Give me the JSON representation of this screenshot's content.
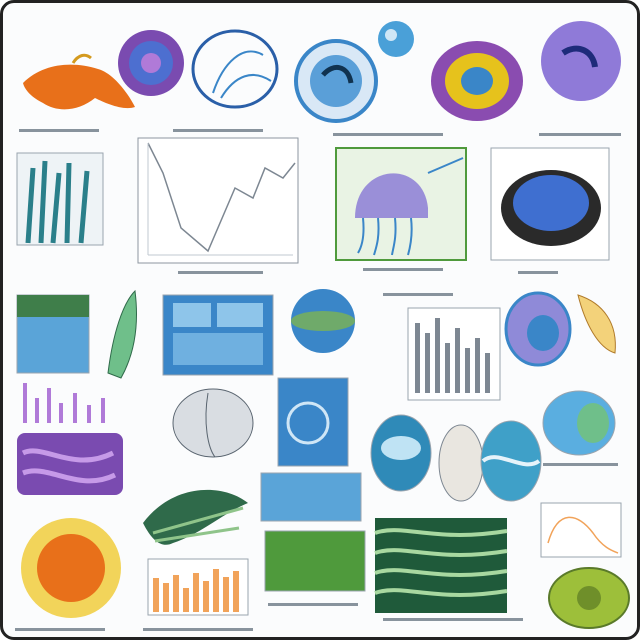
{
  "header_caption": "",
  "palette": {
    "orange": "#e8701a",
    "purple": "#7a4bb0",
    "blue": "#3a86c8",
    "teal": "#2a7f8a",
    "green": "#4f9a3c",
    "yellow": "#e6c21c",
    "lavender": "#9a8fd8",
    "gray": "#7d8792"
  },
  "panels": [
    {
      "name": "orange-specimen",
      "icon": "orange-creature-icon"
    },
    {
      "name": "purple-cell",
      "icon": "purple-cell-icon"
    },
    {
      "name": "blue-ring",
      "icon": "blue-ring-icon"
    },
    {
      "name": "blue-sphere",
      "icon": "blue-sphere-icon"
    },
    {
      "name": "yellow-urchin",
      "icon": "urchin-icon"
    },
    {
      "name": "purple-orb",
      "icon": "purple-orb-icon"
    },
    {
      "name": "line-chart-card",
      "icon": "line-chart-icon"
    },
    {
      "name": "jellyfish-card",
      "icon": "jellyfish-icon"
    },
    {
      "name": "coral-card",
      "icon": "coral-icon"
    },
    {
      "name": "bar-chart-card",
      "icon": "bar-chart-icon"
    },
    {
      "name": "sun-cell",
      "icon": "sun-cell-icon"
    },
    {
      "name": "green-shell",
      "icon": "shell-icon"
    }
  ]
}
